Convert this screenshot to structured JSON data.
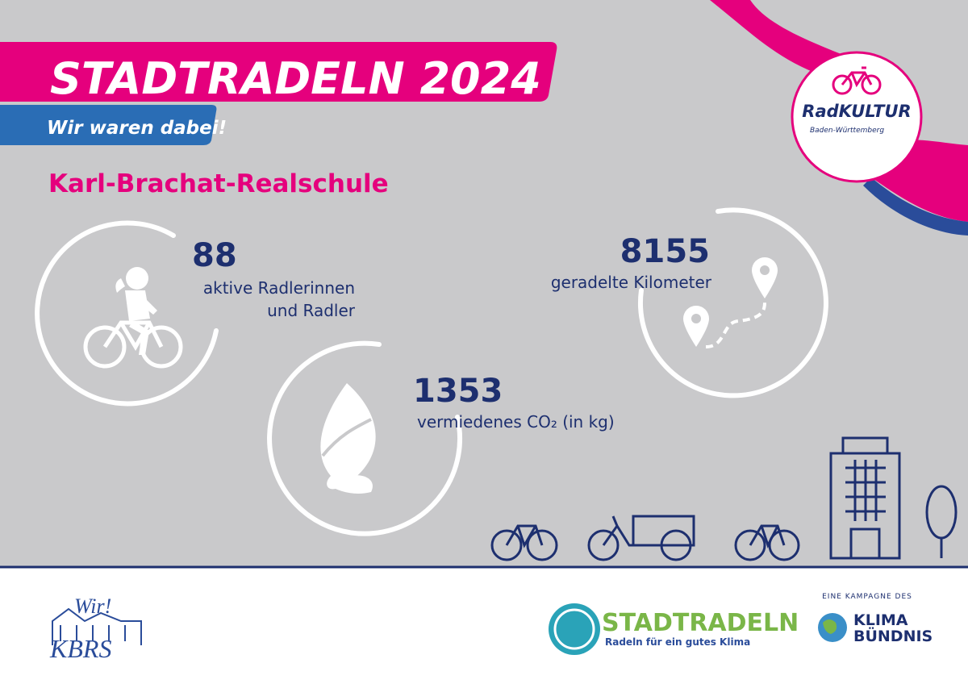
{
  "header": {
    "title": "STADTRADELN 2024",
    "subtitle": "Wir waren dabei!"
  },
  "school": "Karl-Brachat-Realschule",
  "stats": [
    {
      "value": 88,
      "label_lines": [
        "aktive Radlerinnen",
        "und Radler"
      ]
    },
    {
      "value": 8155,
      "label_lines": [
        "geradelte Kilometer"
      ]
    },
    {
      "value": 1353,
      "label_lines": [
        "vermiedenes CO₂ (in kg)"
      ]
    }
  ],
  "radkultur_logo": {
    "name": "RadKULTUR",
    "region": "Baden-Württemberg"
  },
  "footer": {
    "school_logo": {
      "top": "Wir!",
      "bottom": "KBRS"
    },
    "stadtradeln_logo": {
      "name": "STADTRADELN",
      "tagline": "Radeln für ein gutes Klima"
    },
    "klima_logo": {
      "caption": "EINE KAMPAGNE DES",
      "line1": "KLIMA",
      "line2": "BÜNDNIS"
    }
  }
}
